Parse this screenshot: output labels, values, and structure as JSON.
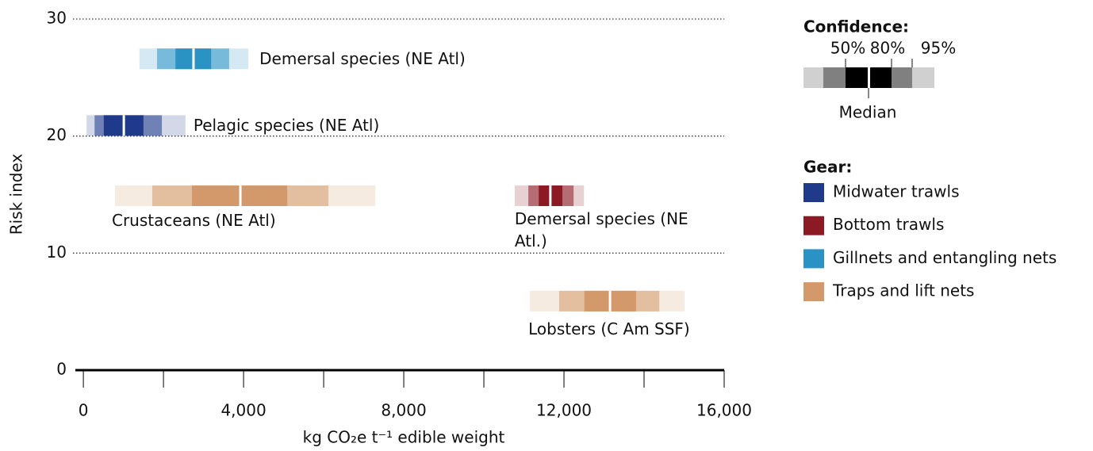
{
  "chart_data": {
    "type": "interval",
    "xlabel": "kg CO₂e t⁻¹ edible weight",
    "ylabel": "Risk index",
    "xlim": [
      -200,
      16000
    ],
    "ylim": [
      0,
      30
    ],
    "xticks": [
      0,
      {
        "value": 4000,
        "label": "4,000"
      },
      {
        "value": 8000,
        "label": "8,000"
      },
      {
        "value": 12000,
        "label": "12,000"
      },
      {
        "value": 16000,
        "label": "16,000"
      }
    ],
    "xminor_ticks": [
      2000,
      6000,
      10000,
      14000
    ],
    "yticks": [
      0,
      10,
      20,
      30
    ],
    "grid": true,
    "gears": [
      {
        "name": "Midwater trawls",
        "color": "#1f3a8a"
      },
      {
        "name": "Bottom trawls",
        "color": "#8b1a24"
      },
      {
        "name": "Gillnets and entangling nets",
        "color": "#2a93c4"
      },
      {
        "name": "Traps and lift nets",
        "color": "#d4996a"
      }
    ],
    "series": [
      {
        "name": "Demersal species (NE Atl)",
        "gear": 2,
        "y": 26.6,
        "median": 2750,
        "ci50": [
          2300,
          3190
        ],
        "ci80": [
          1840,
          3640
        ],
        "ci95": [
          1400,
          4120
        ]
      },
      {
        "name": "Pelagic species (NE Atl)",
        "gear": 0,
        "y": 20.9,
        "median": 1010,
        "ci50": [
          510,
          1500
        ],
        "ci80": [
          280,
          1960
        ],
        "ci95": [
          80,
          2550
        ]
      },
      {
        "name": "Crustaceans (NE Atl)",
        "gear": 3,
        "y": 14.9,
        "median": 3920,
        "ci50": [
          2710,
          5090
        ],
        "ci80": [
          1720,
          6120
        ],
        "ci95": [
          790,
          7290
        ]
      },
      {
        "name": "Demersal species (NE Atl.)",
        "gear": 1,
        "y": 14.9,
        "median": 11660,
        "ci50": [
          11370,
          11960
        ],
        "ci80": [
          11110,
          12240
        ],
        "ci95": [
          10770,
          12500
        ]
      },
      {
        "name": "Lobsters (C Am SSF)",
        "gear": 3,
        "y": 5.9,
        "median": 13150,
        "ci50": [
          12510,
          13800
        ],
        "ci80": [
          11880,
          14380
        ],
        "ci95": [
          11150,
          15010
        ]
      }
    ],
    "legend": {
      "confidence_title": "Confidence:",
      "confidence_labels": [
        "50%",
        "80%",
        "95%"
      ],
      "median_label": "Median",
      "gear_title": "Gear:"
    }
  }
}
